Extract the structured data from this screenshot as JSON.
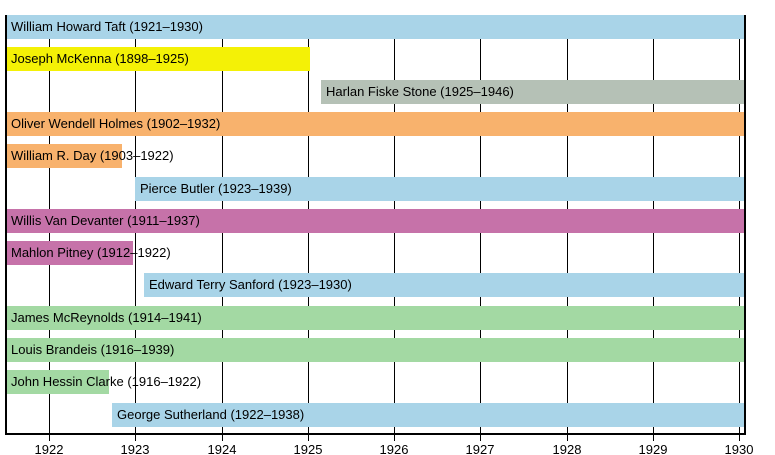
{
  "colors": {
    "blue": "#a9d4e8",
    "yellow": "#f4f106",
    "gray": "#b5c1b6",
    "orange": "#f8b26d",
    "magenta": "#c672a9",
    "green": "#a3d9a3",
    "grid": "#000000",
    "background": "#ffffff",
    "text": "#000000"
  },
  "chart_data": {
    "type": "bar",
    "subtype": "gantt-timeline",
    "title": "",
    "xlabel": "",
    "ylabel": "",
    "legend": "none",
    "grid": "vertical",
    "axis": {
      "min": 1921.5,
      "max": 1930.07,
      "ticks": [
        1922,
        1923,
        1924,
        1925,
        1926,
        1927,
        1928,
        1929,
        1930
      ]
    },
    "x_tick_labels": [
      "1922",
      "1923",
      "1924",
      "1925",
      "1926",
      "1927",
      "1928",
      "1929",
      "1930"
    ],
    "series": [
      {
        "name": "William Howard Taft",
        "label": "William Howard Taft (1921–1930)",
        "term_start": 1921,
        "term_end": 1930,
        "bar_start": 1921.5,
        "bar_end": 1930.07,
        "color": "blue"
      },
      {
        "name": "Joseph McKenna",
        "label": "Joseph McKenna (1898–1925)",
        "term_start": 1898,
        "term_end": 1925,
        "bar_start": 1921.5,
        "bar_end": 1925.02,
        "color": "yellow"
      },
      {
        "name": "Harlan Fiske Stone",
        "label": "Harlan Fiske Stone (1925–1946)",
        "term_start": 1925,
        "term_end": 1946,
        "bar_start": 1925.15,
        "bar_end": 1930.07,
        "color": "gray"
      },
      {
        "name": "Oliver Wendell Holmes",
        "label": "Oliver Wendell Holmes (1902–1932)",
        "term_start": 1902,
        "term_end": 1932,
        "bar_start": 1921.5,
        "bar_end": 1930.07,
        "color": "orange"
      },
      {
        "name": "William R. Day",
        "label": "William R. Day (1903–1922)",
        "term_start": 1903,
        "term_end": 1922,
        "bar_start": 1921.5,
        "bar_end": 1922.85,
        "color": "orange"
      },
      {
        "name": "Pierce Butler",
        "label": "Pierce Butler (1923–1939)",
        "term_start": 1923,
        "term_end": 1939,
        "bar_start": 1923.0,
        "bar_end": 1930.07,
        "color": "blue"
      },
      {
        "name": "Willis Van Devanter",
        "label": "Willis Van Devanter (1911–1937)",
        "term_start": 1911,
        "term_end": 1937,
        "bar_start": 1921.5,
        "bar_end": 1930.07,
        "color": "magenta"
      },
      {
        "name": "Mahlon Pitney",
        "label": "Mahlon Pitney (1912–1922)",
        "term_start": 1912,
        "term_end": 1922,
        "bar_start": 1921.5,
        "bar_end": 1922.97,
        "color": "magenta"
      },
      {
        "name": "Edward Terry Sanford",
        "label": "Edward Terry Sanford (1923–1930)",
        "term_start": 1923,
        "term_end": 1930,
        "bar_start": 1923.1,
        "bar_end": 1930.07,
        "color": "blue"
      },
      {
        "name": "James McReynolds",
        "label": "James McReynolds (1914–1941)",
        "term_start": 1914,
        "term_end": 1941,
        "bar_start": 1921.5,
        "bar_end": 1930.07,
        "color": "green"
      },
      {
        "name": "Louis Brandeis",
        "label": "Louis Brandeis (1916–1939)",
        "term_start": 1916,
        "term_end": 1939,
        "bar_start": 1921.5,
        "bar_end": 1930.07,
        "color": "green"
      },
      {
        "name": "John Hessin Clarke",
        "label": "John Hessin Clarke (1916–1922)",
        "term_start": 1916,
        "term_end": 1922,
        "bar_start": 1921.5,
        "bar_end": 1922.7,
        "color": "green"
      },
      {
        "name": "George Sutherland",
        "label": "George Sutherland (1922–1938)",
        "term_start": 1922,
        "term_end": 1938,
        "bar_start": 1922.73,
        "bar_end": 1930.07,
        "color": "blue"
      }
    ]
  }
}
